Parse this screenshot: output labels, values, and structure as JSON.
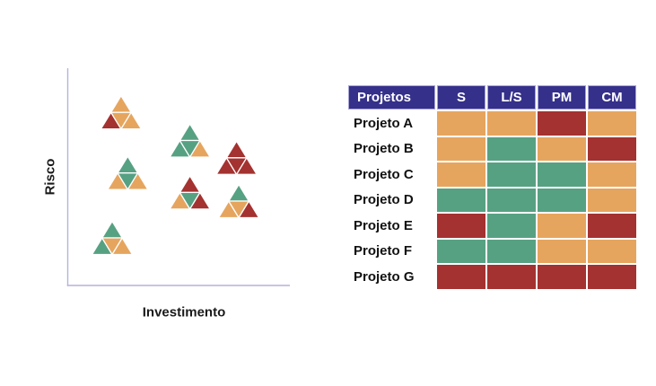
{
  "colors": {
    "orange": "#E6A55E",
    "teal": "#57A183",
    "red": "#A43230",
    "header_bg": "#35308A",
    "header_border": "#A8A4D5",
    "axis": "#B7B2D9",
    "text": "#1A1A1A",
    "header_text": "#FFFFFF"
  },
  "chart_data": {
    "type": "scatter",
    "title": "",
    "xlabel": "Investimento",
    "ylabel": "Risco",
    "xlim": [
      0,
      1
    ],
    "ylim": [
      0,
      1
    ],
    "grid": false,
    "ticks": "none",
    "marker_shape": "pyramid-of-4-triangles",
    "clusters": [
      {
        "x": 0.24,
        "y": 0.8,
        "triangles": {
          "top": "orange",
          "bottom_left": "red",
          "bottom_middle": "orange",
          "bottom_right": "orange"
        }
      },
      {
        "x": 0.55,
        "y": 0.67,
        "triangles": {
          "top": "teal",
          "bottom_left": "teal",
          "bottom_middle": "teal",
          "bottom_right": "orange"
        }
      },
      {
        "x": 0.76,
        "y": 0.59,
        "triangles": {
          "top": "red",
          "bottom_left": "red",
          "bottom_middle": "red",
          "bottom_right": "red"
        }
      },
      {
        "x": 0.27,
        "y": 0.52,
        "triangles": {
          "top": "teal",
          "bottom_left": "orange",
          "bottom_middle": "teal",
          "bottom_right": "orange"
        }
      },
      {
        "x": 0.55,
        "y": 0.43,
        "triangles": {
          "top": "red",
          "bottom_left": "orange",
          "bottom_middle": "teal",
          "bottom_right": "red"
        }
      },
      {
        "x": 0.77,
        "y": 0.39,
        "triangles": {
          "top": "teal",
          "bottom_left": "orange",
          "bottom_middle": "orange",
          "bottom_right": "red"
        }
      },
      {
        "x": 0.2,
        "y": 0.22,
        "triangles": {
          "top": "teal",
          "bottom_left": "teal",
          "bottom_middle": "orange",
          "bottom_right": "orange"
        }
      }
    ]
  },
  "table": {
    "columns": [
      "Projetos",
      "S",
      "L/S",
      "PM",
      "CM"
    ],
    "rows": [
      {
        "label": "Projeto A",
        "cells": [
          "orange",
          "orange",
          "red",
          "orange"
        ]
      },
      {
        "label": "Projeto B",
        "cells": [
          "orange",
          "teal",
          "orange",
          "red"
        ]
      },
      {
        "label": "Projeto C",
        "cells": [
          "orange",
          "teal",
          "teal",
          "orange"
        ]
      },
      {
        "label": "Projeto D",
        "cells": [
          "teal",
          "teal",
          "teal",
          "orange"
        ]
      },
      {
        "label": "Projeto E",
        "cells": [
          "red",
          "teal",
          "orange",
          "red"
        ]
      },
      {
        "label": "Projeto F",
        "cells": [
          "teal",
          "teal",
          "orange",
          "orange"
        ]
      },
      {
        "label": "Projeto G",
        "cells": [
          "red",
          "red",
          "red",
          "red"
        ]
      }
    ]
  }
}
